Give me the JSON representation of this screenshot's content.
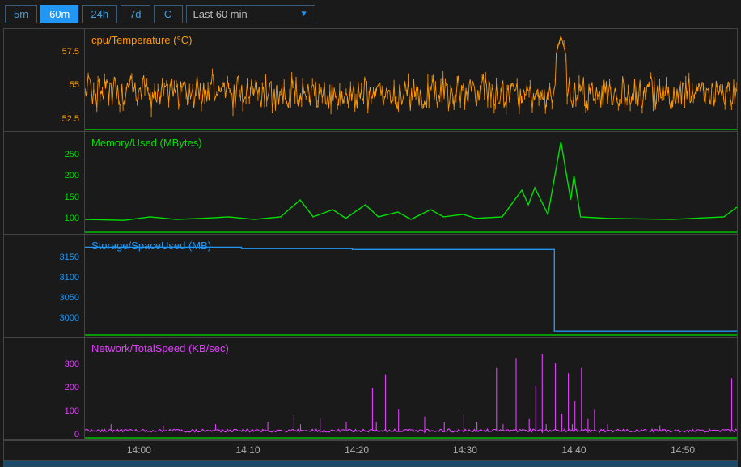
{
  "toolbar": {
    "buttons": [
      {
        "label": "5m",
        "active": false
      },
      {
        "label": "60m",
        "active": true
      },
      {
        "label": "24h",
        "active": false
      },
      {
        "label": "7d",
        "active": false
      },
      {
        "label": "C",
        "active": false
      }
    ],
    "range_label": "Last 60 min"
  },
  "time_axis": {
    "labels": [
      "14:00",
      "14:10",
      "14:20",
      "14:30",
      "14:40",
      "14:50"
    ],
    "positions_pct": [
      8.3,
      25,
      41.7,
      58.3,
      75,
      91.7
    ]
  },
  "panels": [
    {
      "id": "cpu",
      "title": "cpu/Temperature (°C)",
      "color": "#ff9800",
      "yticks": [
        {
          "v": 52.5,
          "p": 88
        },
        {
          "v": 55,
          "p": 55
        },
        {
          "v": 57.5,
          "p": 22
        }
      ],
      "ylim": [
        51,
        59
      ],
      "baseline_color": "#00c000",
      "style": "noisy",
      "base_value": 54,
      "noise_amp": 1.2,
      "spikes": [
        {
          "x": 0.73,
          "v": 58.5
        }
      ]
    },
    {
      "id": "mem",
      "title": "Memory/Used (MBytes)",
      "color": "#00e000",
      "yticks": [
        {
          "v": 100,
          "p": 85
        },
        {
          "v": 150,
          "p": 64
        },
        {
          "v": 200,
          "p": 43
        },
        {
          "v": 250,
          "p": 22
        }
      ],
      "ylim": [
        80,
        290
      ],
      "baseline_color": "#00c000",
      "style": "line",
      "segments": [
        {
          "x": 0,
          "v": 110
        },
        {
          "x": 0.06,
          "v": 108
        },
        {
          "x": 0.1,
          "v": 115
        },
        {
          "x": 0.14,
          "v": 110
        },
        {
          "x": 0.18,
          "v": 112
        },
        {
          "x": 0.22,
          "v": 115
        },
        {
          "x": 0.26,
          "v": 110
        },
        {
          "x": 0.3,
          "v": 115
        },
        {
          "x": 0.33,
          "v": 150
        },
        {
          "x": 0.35,
          "v": 115
        },
        {
          "x": 0.38,
          "v": 130
        },
        {
          "x": 0.4,
          "v": 112
        },
        {
          "x": 0.43,
          "v": 140
        },
        {
          "x": 0.45,
          "v": 115
        },
        {
          "x": 0.48,
          "v": 125
        },
        {
          "x": 0.5,
          "v": 110
        },
        {
          "x": 0.53,
          "v": 130
        },
        {
          "x": 0.55,
          "v": 115
        },
        {
          "x": 0.58,
          "v": 120
        },
        {
          "x": 0.6,
          "v": 112
        },
        {
          "x": 0.64,
          "v": 115
        },
        {
          "x": 0.67,
          "v": 170
        },
        {
          "x": 0.68,
          "v": 140
        },
        {
          "x": 0.69,
          "v": 175
        },
        {
          "x": 0.71,
          "v": 120
        },
        {
          "x": 0.73,
          "v": 270
        },
        {
          "x": 0.745,
          "v": 150
        },
        {
          "x": 0.75,
          "v": 200
        },
        {
          "x": 0.76,
          "v": 115
        },
        {
          "x": 0.8,
          "v": 112
        },
        {
          "x": 0.9,
          "v": 110
        },
        {
          "x": 0.98,
          "v": 115
        },
        {
          "x": 1.0,
          "v": 135
        }
      ]
    },
    {
      "id": "storage",
      "title": "Storage/SpaceUsed (MB)",
      "color": "#2196f3",
      "yticks": [
        {
          "v": 3000,
          "p": 82
        },
        {
          "v": 3050,
          "p": 62
        },
        {
          "v": 3100,
          "p": 42
        },
        {
          "v": 3150,
          "p": 22
        }
      ],
      "ylim": [
        2960,
        3180
      ],
      "baseline_color": "#00c000",
      "style": "step",
      "segments": [
        {
          "x": 0,
          "v": 3153
        },
        {
          "x": 0.24,
          "v": 3153
        },
        {
          "x": 0.24,
          "v": 3150
        },
        {
          "x": 0.41,
          "v": 3150
        },
        {
          "x": 0.41,
          "v": 3148
        },
        {
          "x": 0.72,
          "v": 3148
        },
        {
          "x": 0.72,
          "v": 2972
        },
        {
          "x": 1.0,
          "v": 2972
        }
      ]
    },
    {
      "id": "net",
      "title": "Network/TotalSpeed (KB/sec)",
      "color": "#e040fb",
      "yticks": [
        {
          "v": 0,
          "p": 95
        },
        {
          "v": 100,
          "p": 72
        },
        {
          "v": 200,
          "p": 49
        },
        {
          "v": 300,
          "p": 26
        }
      ],
      "ylim": [
        0,
        400
      ],
      "baseline_color": "#00c000",
      "style": "spiky",
      "base_value": 35,
      "noise_amp": 10,
      "spikes": [
        {
          "x": 0.04,
          "v": 60
        },
        {
          "x": 0.12,
          "v": 55
        },
        {
          "x": 0.2,
          "v": 60
        },
        {
          "x": 0.28,
          "v": 70
        },
        {
          "x": 0.32,
          "v": 95
        },
        {
          "x": 0.33,
          "v": 60
        },
        {
          "x": 0.36,
          "v": 85
        },
        {
          "x": 0.4,
          "v": 70
        },
        {
          "x": 0.44,
          "v": 200
        },
        {
          "x": 0.445,
          "v": 70
        },
        {
          "x": 0.46,
          "v": 255
        },
        {
          "x": 0.48,
          "v": 120
        },
        {
          "x": 0.52,
          "v": 90
        },
        {
          "x": 0.55,
          "v": 70
        },
        {
          "x": 0.58,
          "v": 100
        },
        {
          "x": 0.6,
          "v": 70
        },
        {
          "x": 0.63,
          "v": 280
        },
        {
          "x": 0.64,
          "v": 60
        },
        {
          "x": 0.66,
          "v": 320
        },
        {
          "x": 0.68,
          "v": 80
        },
        {
          "x": 0.69,
          "v": 210
        },
        {
          "x": 0.7,
          "v": 335
        },
        {
          "x": 0.705,
          "v": 60
        },
        {
          "x": 0.72,
          "v": 300
        },
        {
          "x": 0.73,
          "v": 100
        },
        {
          "x": 0.74,
          "v": 260
        },
        {
          "x": 0.745,
          "v": 60
        },
        {
          "x": 0.75,
          "v": 150
        },
        {
          "x": 0.76,
          "v": 280
        },
        {
          "x": 0.77,
          "v": 80
        },
        {
          "x": 0.78,
          "v": 120
        },
        {
          "x": 0.8,
          "v": 60
        },
        {
          "x": 0.88,
          "v": 55
        },
        {
          "x": 0.99,
          "v": 240
        },
        {
          "x": 1.0,
          "v": 200
        }
      ]
    }
  ],
  "colors": {
    "bg": "#1a1a1a",
    "panel_border": "#444",
    "tick_text": "#888"
  },
  "scrollbar": {
    "thumb_start_pct": 0,
    "thumb_width_pct": 100
  }
}
